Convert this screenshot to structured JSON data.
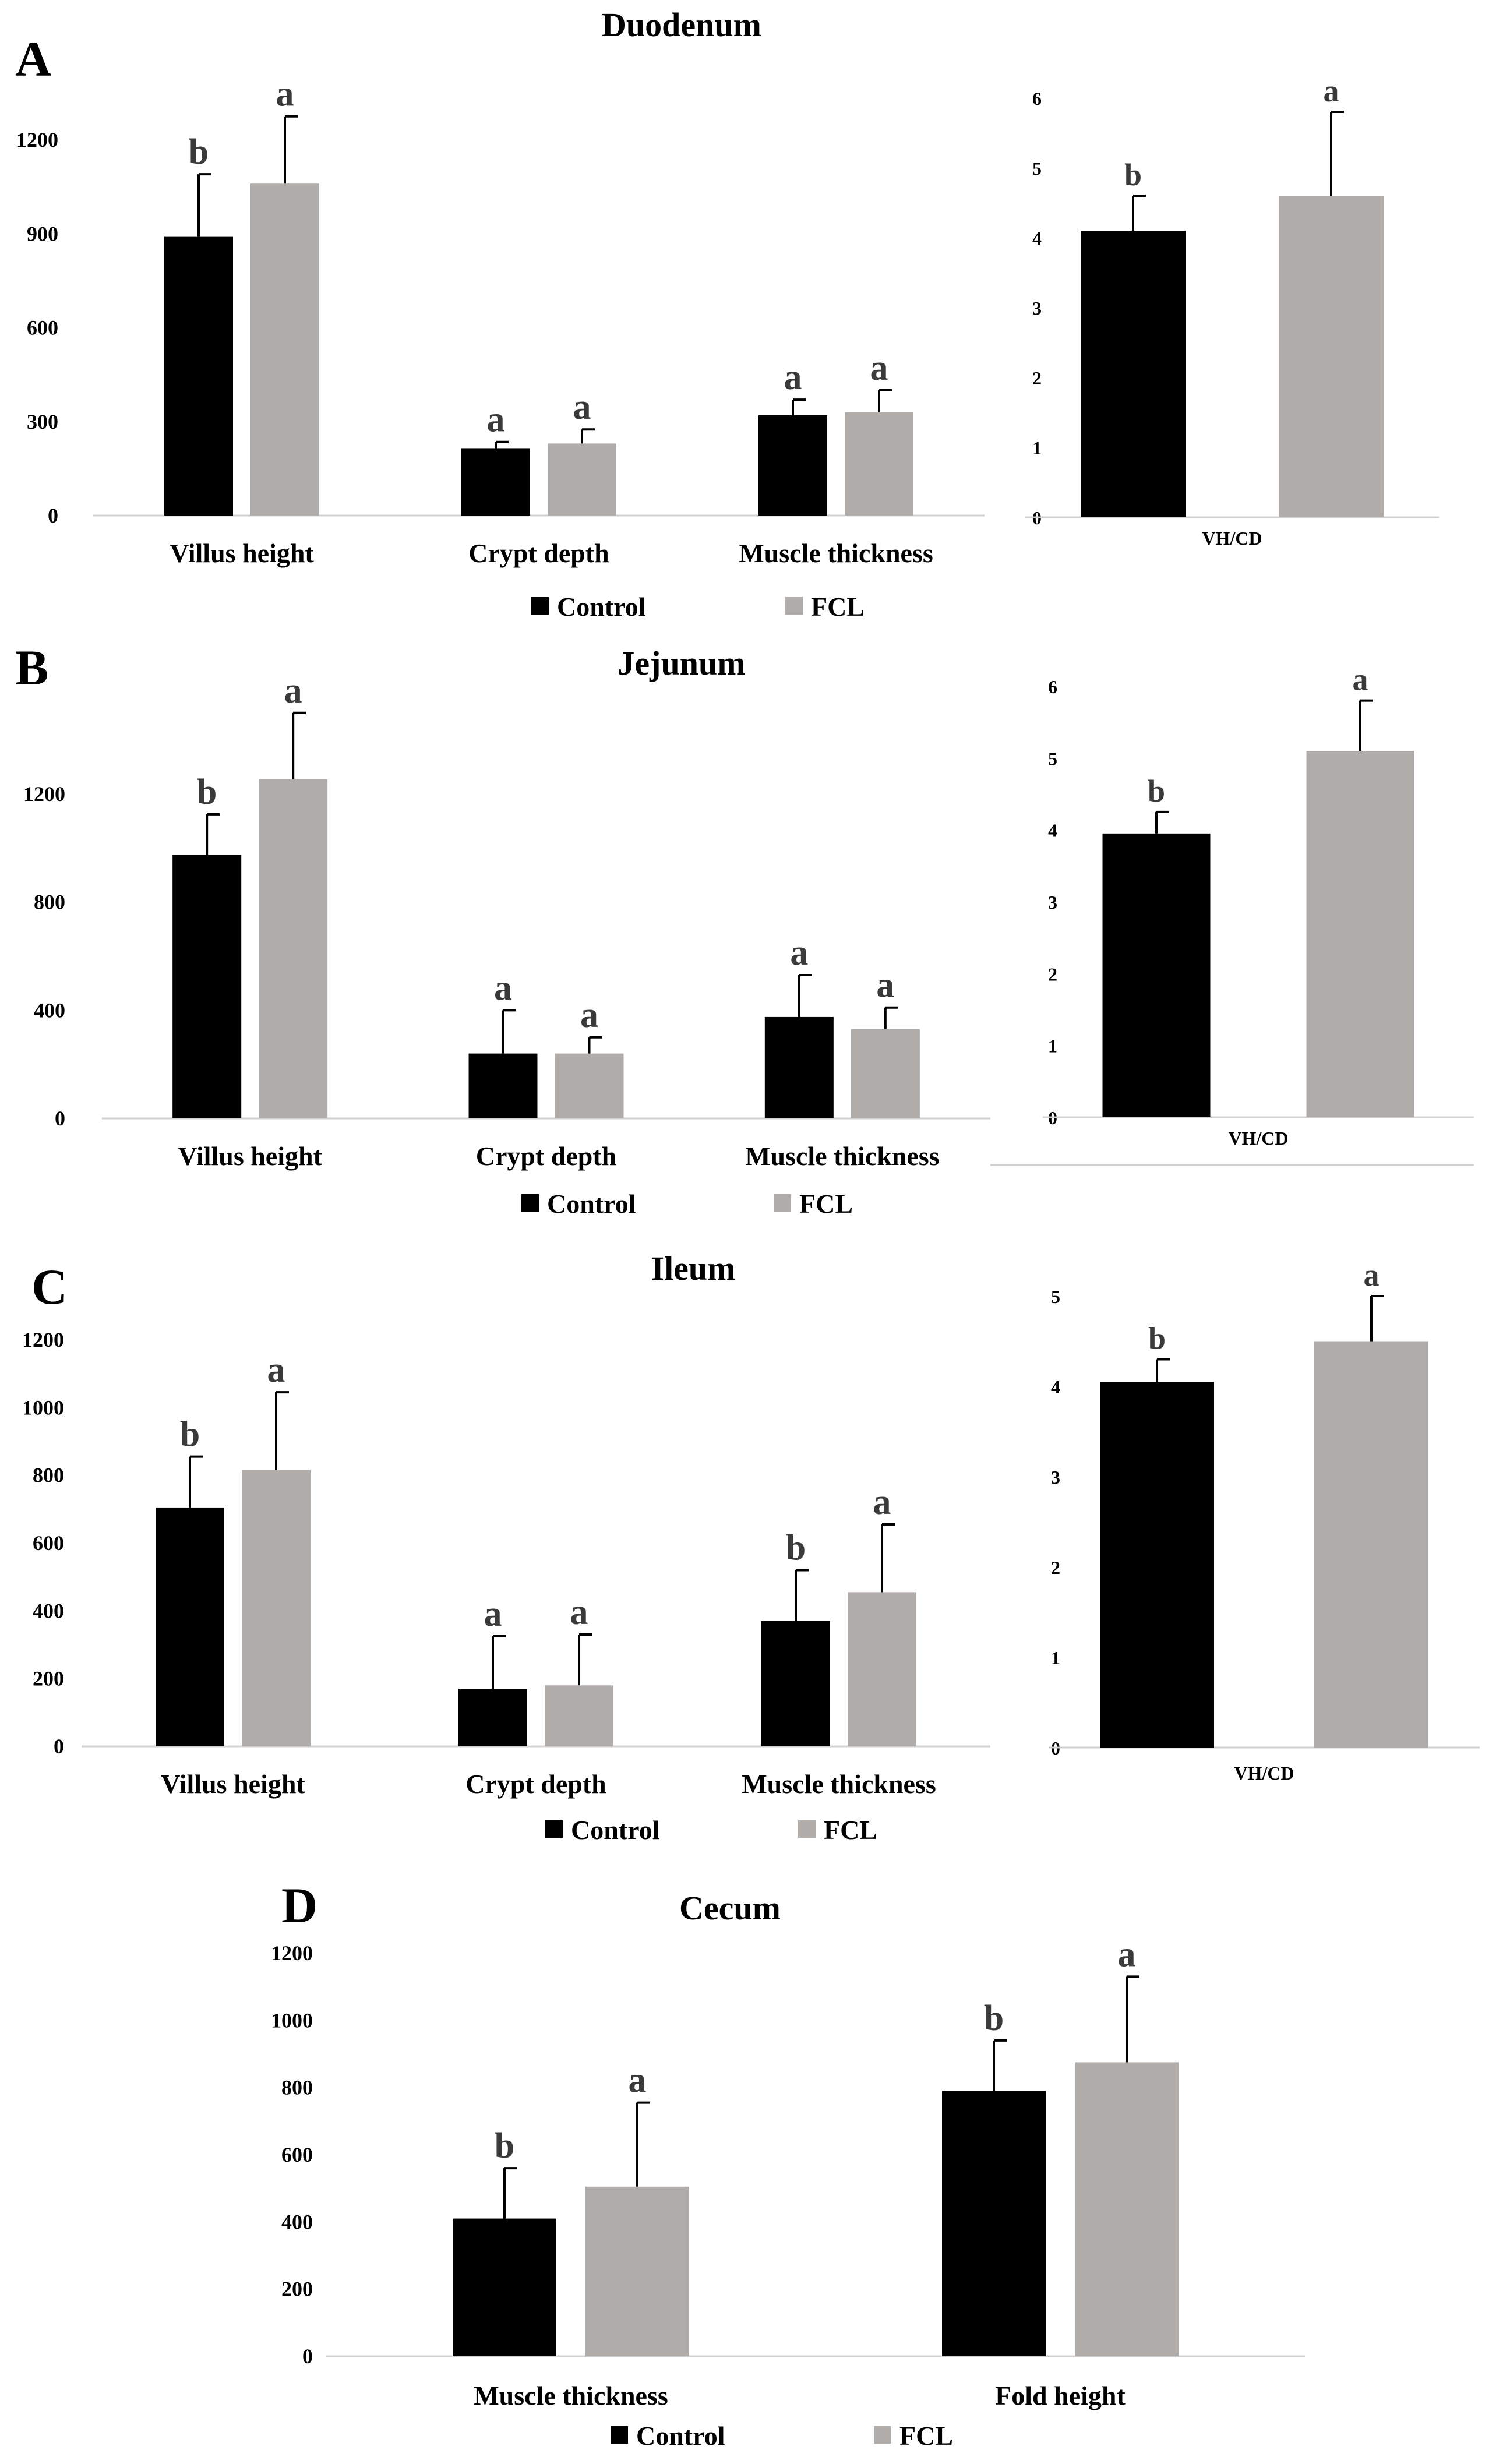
{
  "colors": {
    "control": "#000000",
    "fcl": "#b0acaa",
    "axis": "#d0d0d0",
    "errorbar": "#000000"
  },
  "chart_data": [
    {
      "id": "A-main",
      "panel": "A",
      "title": "Duodenum",
      "type": "bar",
      "categories": [
        "Villus height",
        "Crypt depth",
        "Muscle thickness"
      ],
      "ylim": [
        0,
        1200
      ],
      "yticks": [
        0,
        300,
        600,
        900,
        1200
      ],
      "series": [
        {
          "name": "Control",
          "values": [
            890,
            215,
            320
          ],
          "errors": [
            200,
            20,
            50
          ],
          "letters": [
            "b",
            "a",
            "a"
          ]
        },
        {
          "name": "FCL",
          "values": [
            1060,
            230,
            330
          ],
          "errors": [
            215,
            45,
            70
          ],
          "letters": [
            "a",
            "a",
            "a"
          ]
        }
      ]
    },
    {
      "id": "A-ratio",
      "panel": "A",
      "title": "",
      "type": "bar",
      "categories": [
        "VH/CD"
      ],
      "ylim": [
        0,
        6
      ],
      "yticks": [
        0,
        1,
        2,
        3,
        4,
        5,
        6
      ],
      "series": [
        {
          "name": "Control",
          "values": [
            4.1
          ],
          "errors": [
            0.5
          ],
          "letters": [
            "b"
          ]
        },
        {
          "name": "FCL",
          "values": [
            4.6
          ],
          "errors": [
            1.2
          ],
          "letters": [
            "a"
          ]
        }
      ]
    },
    {
      "id": "B-main",
      "panel": "B",
      "title": "Jejunum",
      "type": "bar",
      "categories": [
        "Villus height",
        "Crypt depth",
        "Muscle thickness"
      ],
      "ylim": [
        0,
        1200
      ],
      "yticks": [
        0,
        400,
        800,
        1200
      ],
      "series": [
        {
          "name": "Control",
          "values": [
            975,
            240,
            375
          ],
          "errors": [
            150,
            160,
            155
          ],
          "letters": [
            "b",
            "a",
            "a"
          ]
        },
        {
          "name": "FCL",
          "values": [
            1255,
            240,
            330
          ],
          "errors": [
            245,
            60,
            80
          ],
          "letters": [
            "a",
            "a",
            "a"
          ]
        }
      ]
    },
    {
      "id": "B-ratio",
      "panel": "B",
      "title": "",
      "type": "bar",
      "categories": [
        "VH/CD"
      ],
      "ylim": [
        0,
        6
      ],
      "yticks": [
        0,
        1,
        2,
        3,
        4,
        5,
        6
      ],
      "series": [
        {
          "name": "Control",
          "values": [
            3.95
          ],
          "errors": [
            0.3
          ],
          "letters": [
            "b"
          ]
        },
        {
          "name": "FCL",
          "values": [
            5.1
          ],
          "errors": [
            0.7
          ],
          "letters": [
            "a"
          ]
        }
      ]
    },
    {
      "id": "C-main",
      "panel": "C",
      "title": "Ileum",
      "type": "bar",
      "categories": [
        "Villus height",
        "Crypt depth",
        "Muscle thickness"
      ],
      "ylim": [
        0,
        1200
      ],
      "yticks": [
        0,
        200,
        400,
        600,
        800,
        1000,
        1200
      ],
      "series": [
        {
          "name": "Control",
          "values": [
            705,
            170,
            370
          ],
          "errors": [
            150,
            155,
            150
          ],
          "letters": [
            "b",
            "a",
            "b"
          ]
        },
        {
          "name": "FCL",
          "values": [
            815,
            180,
            455
          ],
          "errors": [
            230,
            150,
            200
          ],
          "letters": [
            "a",
            "a",
            "a"
          ]
        }
      ]
    },
    {
      "id": "C-ratio",
      "panel": "C",
      "title": "",
      "type": "bar",
      "categories": [
        "VH/CD"
      ],
      "ylim": [
        0,
        5
      ],
      "yticks": [
        0,
        1,
        2,
        3,
        4,
        5
      ],
      "series": [
        {
          "name": "Control",
          "values": [
            4.05
          ],
          "errors": [
            0.25
          ],
          "letters": [
            "b"
          ]
        },
        {
          "name": "FCL",
          "values": [
            4.5
          ],
          "errors": [
            0.5
          ],
          "letters": [
            "a"
          ]
        }
      ]
    },
    {
      "id": "D-main",
      "panel": "D",
      "title": "Cecum",
      "type": "bar",
      "categories": [
        "Muscle thickness",
        "Fold height"
      ],
      "ylim": [
        0,
        1200
      ],
      "yticks": [
        0,
        200,
        400,
        600,
        800,
        1000,
        1200
      ],
      "series": [
        {
          "name": "Control",
          "values": [
            410,
            790
          ],
          "errors": [
            150,
            150
          ],
          "letters": [
            "b",
            "b"
          ]
        },
        {
          "name": "FCL",
          "values": [
            505,
            875
          ],
          "errors": [
            250,
            255
          ],
          "letters": [
            "a",
            "a"
          ]
        }
      ]
    }
  ],
  "panels": {
    "A": {
      "letter": "A",
      "title": "Duodenum"
    },
    "B": {
      "letter": "B",
      "title": "Jejunum"
    },
    "C": {
      "letter": "C",
      "title": "Ileum"
    },
    "D": {
      "letter": "D",
      "title": "Cecum"
    }
  },
  "legend": {
    "control": "Control",
    "fcl": "FCL"
  }
}
